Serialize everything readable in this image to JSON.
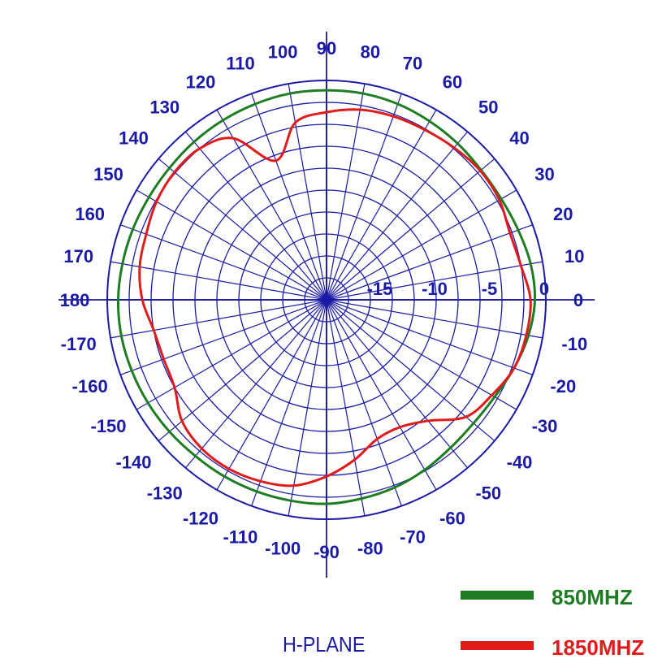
{
  "chart_data": {
    "type": "polar-line",
    "title": "",
    "plane_label": "H-PLANE",
    "angle_ticks": [
      0,
      10,
      20,
      30,
      40,
      50,
      60,
      70,
      80,
      90,
      100,
      110,
      120,
      130,
      140,
      150,
      160,
      170,
      180,
      -170,
      -160,
      -150,
      -140,
      -130,
      -120,
      -110,
      -100,
      -90,
      -80,
      -70,
      -60,
      -50,
      -40,
      -30,
      -20,
      -10
    ],
    "angle_tick_labels": [
      "0",
      "10",
      "20",
      "30",
      "40",
      "50",
      "60",
      "70",
      "80",
      "90",
      "100",
      "110",
      "120",
      "130",
      "140",
      "150",
      "160",
      "170",
      "180",
      "-170",
      "-160",
      "-150",
      "-140",
      "-130",
      "-120",
      "-110",
      "-100",
      "-90",
      "-80",
      "-70",
      "-60",
      "-50",
      "-40",
      "-30",
      "-20",
      "-10"
    ],
    "radial_ticks": [
      -15,
      -10,
      -5,
      0
    ],
    "radial_tick_labels": [
      "-15",
      "-10",
      "-5",
      "0"
    ],
    "radial_range_db": [
      -20,
      0
    ],
    "series": [
      {
        "name": "850MHZ",
        "color": "#1e7d22",
        "points": [
          [
            0,
            -1.0
          ],
          [
            10,
            -1.1
          ],
          [
            20,
            -1.4
          ],
          [
            30,
            -1.6
          ],
          [
            40,
            -1.6
          ],
          [
            50,
            -1.4
          ],
          [
            60,
            -1.2
          ],
          [
            70,
            -1.0
          ],
          [
            80,
            -0.9
          ],
          [
            90,
            -0.9
          ],
          [
            100,
            -0.9
          ],
          [
            110,
            -1.0
          ],
          [
            120,
            -1.1
          ],
          [
            130,
            -1.2
          ],
          [
            140,
            -1.3
          ],
          [
            150,
            -1.3
          ],
          [
            160,
            -1.2
          ],
          [
            170,
            -1.1
          ],
          [
            180,
            -1.0
          ],
          [
            -170,
            -1.0
          ],
          [
            -160,
            -1.1
          ],
          [
            -150,
            -1.2
          ],
          [
            -140,
            -1.3
          ],
          [
            -130,
            -1.4
          ],
          [
            -120,
            -1.4
          ],
          [
            -110,
            -1.4
          ],
          [
            -100,
            -1.4
          ],
          [
            -90,
            -1.4
          ],
          [
            -80,
            -1.6
          ],
          [
            -70,
            -1.8
          ],
          [
            -60,
            -2.1
          ],
          [
            -50,
            -2.4
          ],
          [
            -40,
            -2.5
          ],
          [
            -30,
            -2.3
          ],
          [
            -20,
            -1.8
          ],
          [
            -10,
            -1.3
          ]
        ]
      },
      {
        "name": "1850MHZ",
        "color": "#e01b1b",
        "points": [
          [
            0,
            -1.4
          ],
          [
            10,
            -2.0
          ],
          [
            20,
            -2.2
          ],
          [
            30,
            -1.8
          ],
          [
            40,
            -1.7
          ],
          [
            50,
            -1.9
          ],
          [
            60,
            -2.1
          ],
          [
            70,
            -2.2
          ],
          [
            80,
            -2.4
          ],
          [
            90,
            -2.9
          ],
          [
            100,
            -3.6
          ],
          [
            110,
            -6.5
          ],
          [
            120,
            -3.0
          ],
          [
            130,
            -2.0
          ],
          [
            140,
            -1.9
          ],
          [
            150,
            -2.1
          ],
          [
            160,
            -2.5
          ],
          [
            170,
            -2.7
          ],
          [
            180,
            -3.2
          ],
          [
            -170,
            -4.0
          ],
          [
            -160,
            -4.2
          ],
          [
            -150,
            -4.0
          ],
          [
            -140,
            -2.8
          ],
          [
            -130,
            -2.3
          ],
          [
            -120,
            -2.2
          ],
          [
            -110,
            -2.4
          ],
          [
            -100,
            -2.8
          ],
          [
            -90,
            -3.9
          ],
          [
            -80,
            -5.2
          ],
          [
            -70,
            -6.5
          ],
          [
            -60,
            -6.6
          ],
          [
            -50,
            -5.6
          ],
          [
            -40,
            -3.4
          ],
          [
            -30,
            -2.6
          ],
          [
            -20,
            -1.8
          ],
          [
            -10,
            -1.5
          ]
        ]
      }
    ],
    "legend": [
      {
        "label": "850MHZ",
        "color": "#1e7d22"
      },
      {
        "label": "1850MHZ",
        "color": "#e01b1b"
      }
    ],
    "grid": true,
    "legend_position": "bottom-right",
    "colors": {
      "grid": "#1a1aa6",
      "text": "#1a1aa6"
    }
  }
}
